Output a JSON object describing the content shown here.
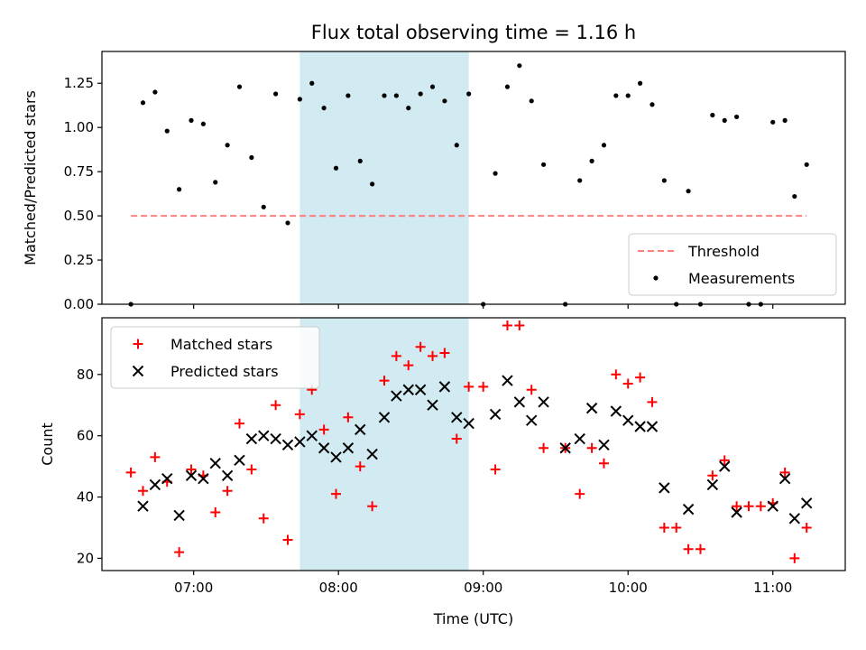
{
  "chart_data": [
    {
      "type": "scatter",
      "title": "Flux total observing time = 1.16 h",
      "ylabel": "Matched/Predicted stars",
      "xlabel": "",
      "x_unit": "minutes since 00:00 UTC",
      "xlim": [
        "06:22",
        "11:30"
      ],
      "ylim": [
        0,
        1.43
      ],
      "yticks": [
        "0.00",
        "0.25",
        "0.50",
        "0.75",
        "1.00",
        "1.25"
      ],
      "highlight_span": [
        "07:44",
        "08:54"
      ],
      "highlight_color": "#add8e6",
      "legend_position": "lower-right",
      "threshold": {
        "name": "Threshold",
        "value": 0.5,
        "x_range": [
          "06:34",
          "11:14"
        ],
        "color": "#ff7f7f",
        "style": "dashed"
      },
      "series": [
        {
          "name": "Measurements",
          "color": "#000000",
          "marker": "dot",
          "points": [
            [
              "06:34",
              0.0
            ],
            [
              "06:39",
              1.14
            ],
            [
              "06:44",
              1.2
            ],
            [
              "06:49",
              0.98
            ],
            [
              "06:54",
              0.65
            ],
            [
              "06:59",
              1.04
            ],
            [
              "07:04",
              1.02
            ],
            [
              "07:09",
              0.69
            ],
            [
              "07:14",
              0.9
            ],
            [
              "07:19",
              1.23
            ],
            [
              "07:24",
              0.83
            ],
            [
              "07:29",
              0.55
            ],
            [
              "07:34",
              1.19
            ],
            [
              "07:39",
              0.46
            ],
            [
              "07:44",
              1.16
            ],
            [
              "07:49",
              1.25
            ],
            [
              "07:54",
              1.11
            ],
            [
              "07:59",
              0.77
            ],
            [
              "08:04",
              1.18
            ],
            [
              "08:09",
              0.81
            ],
            [
              "08:14",
              0.68
            ],
            [
              "08:19",
              1.18
            ],
            [
              "08:24",
              1.18
            ],
            [
              "08:29",
              1.11
            ],
            [
              "08:34",
              1.19
            ],
            [
              "08:39",
              1.23
            ],
            [
              "08:44",
              1.15
            ],
            [
              "08:49",
              0.9
            ],
            [
              "08:54",
              1.19
            ],
            [
              "09:00",
              0.0
            ],
            [
              "09:05",
              0.74
            ],
            [
              "09:10",
              1.23
            ],
            [
              "09:15",
              1.35
            ],
            [
              "09:20",
              1.15
            ],
            [
              "09:25",
              0.79
            ],
            [
              "09:34",
              0.0
            ],
            [
              "09:40",
              0.7
            ],
            [
              "09:45",
              0.81
            ],
            [
              "09:50",
              0.9
            ],
            [
              "09:55",
              1.18
            ],
            [
              "10:00",
              1.18
            ],
            [
              "10:05",
              1.25
            ],
            [
              "10:10",
              1.13
            ],
            [
              "10:15",
              0.7
            ],
            [
              "10:20",
              0.0
            ],
            [
              "10:25",
              0.64
            ],
            [
              "10:30",
              0.0
            ],
            [
              "10:35",
              1.07
            ],
            [
              "10:40",
              1.04
            ],
            [
              "10:45",
              1.06
            ],
            [
              "10:50",
              0.0
            ],
            [
              "10:55",
              0.0
            ],
            [
              "11:00",
              1.03
            ],
            [
              "11:05",
              1.04
            ],
            [
              "11:09",
              0.61
            ],
            [
              "11:14",
              0.79
            ]
          ]
        }
      ]
    },
    {
      "type": "scatter",
      "title": "",
      "ylabel": "Count",
      "xlabel": "Time (UTC)",
      "xlim": [
        "06:22",
        "11:30"
      ],
      "ylim": [
        16,
        98.5
      ],
      "yticks": [
        "20",
        "40",
        "60",
        "80"
      ],
      "xticks": [
        "07:00",
        "08:00",
        "09:00",
        "10:00",
        "11:00"
      ],
      "highlight_span": [
        "07:44",
        "08:54"
      ],
      "highlight_color": "#add8e6",
      "legend_position": "upper-left",
      "series": [
        {
          "name": "Matched stars",
          "color": "#ff0000",
          "marker": "plus",
          "points": [
            [
              "06:34",
              48
            ],
            [
              "06:39",
              42
            ],
            [
              "06:44",
              53
            ],
            [
              "06:49",
              45
            ],
            [
              "06:54",
              22
            ],
            [
              "06:59",
              49
            ],
            [
              "07:04",
              47
            ],
            [
              "07:09",
              35
            ],
            [
              "07:14",
              42
            ],
            [
              "07:19",
              64
            ],
            [
              "07:24",
              49
            ],
            [
              "07:29",
              33
            ],
            [
              "07:34",
              70
            ],
            [
              "07:39",
              26
            ],
            [
              "07:44",
              67
            ],
            [
              "07:49",
              75
            ],
            [
              "07:54",
              62
            ],
            [
              "07:59",
              41
            ],
            [
              "08:04",
              66
            ],
            [
              "08:09",
              50
            ],
            [
              "08:14",
              37
            ],
            [
              "08:19",
              78
            ],
            [
              "08:24",
              86
            ],
            [
              "08:29",
              83
            ],
            [
              "08:34",
              89
            ],
            [
              "08:39",
              86
            ],
            [
              "08:44",
              87
            ],
            [
              "08:49",
              59
            ],
            [
              "08:54",
              76
            ],
            [
              "09:00",
              76
            ],
            [
              "09:05",
              49
            ],
            [
              "09:10",
              96
            ],
            [
              "09:15",
              96
            ],
            [
              "09:20",
              75
            ],
            [
              "09:25",
              56
            ],
            [
              "09:34",
              56
            ],
            [
              "09:40",
              41
            ],
            [
              "09:45",
              56
            ],
            [
              "09:50",
              51
            ],
            [
              "09:55",
              80
            ],
            [
              "10:00",
              77
            ],
            [
              "10:05",
              79
            ],
            [
              "10:10",
              71
            ],
            [
              "10:15",
              30
            ],
            [
              "10:20",
              30
            ],
            [
              "10:25",
              23
            ],
            [
              "10:30",
              23
            ],
            [
              "10:35",
              47
            ],
            [
              "10:40",
              52
            ],
            [
              "10:45",
              37
            ],
            [
              "10:50",
              37
            ],
            [
              "10:55",
              37
            ],
            [
              "11:00",
              38
            ],
            [
              "11:05",
              48
            ],
            [
              "11:09",
              20
            ],
            [
              "11:14",
              30
            ]
          ]
        },
        {
          "name": "Predicted stars",
          "color": "#000000",
          "marker": "x",
          "points": [
            [
              "06:39",
              37
            ],
            [
              "06:44",
              44
            ],
            [
              "06:49",
              46
            ],
            [
              "06:54",
              34
            ],
            [
              "06:59",
              47
            ],
            [
              "07:04",
              46
            ],
            [
              "07:09",
              51
            ],
            [
              "07:14",
              47
            ],
            [
              "07:19",
              52
            ],
            [
              "07:24",
              59
            ],
            [
              "07:29",
              60
            ],
            [
              "07:34",
              59
            ],
            [
              "07:39",
              57
            ],
            [
              "07:44",
              58
            ],
            [
              "07:49",
              60
            ],
            [
              "07:54",
              56
            ],
            [
              "07:59",
              53
            ],
            [
              "08:04",
              56
            ],
            [
              "08:09",
              62
            ],
            [
              "08:14",
              54
            ],
            [
              "08:19",
              66
            ],
            [
              "08:24",
              73
            ],
            [
              "08:29",
              75
            ],
            [
              "08:34",
              75
            ],
            [
              "08:39",
              70
            ],
            [
              "08:44",
              76
            ],
            [
              "08:49",
              66
            ],
            [
              "08:54",
              64
            ],
            [
              "09:05",
              67
            ],
            [
              "09:10",
              78
            ],
            [
              "09:15",
              71
            ],
            [
              "09:20",
              65
            ],
            [
              "09:25",
              71
            ],
            [
              "09:34",
              56
            ],
            [
              "09:40",
              59
            ],
            [
              "09:45",
              69
            ],
            [
              "09:50",
              57
            ],
            [
              "09:55",
              68
            ],
            [
              "10:00",
              65
            ],
            [
              "10:05",
              63
            ],
            [
              "10:10",
              63
            ],
            [
              "10:15",
              43
            ],
            [
              "10:25",
              36
            ],
            [
              "10:35",
              44
            ],
            [
              "10:40",
              50
            ],
            [
              "10:45",
              35
            ],
            [
              "11:00",
              37
            ],
            [
              "11:05",
              46
            ],
            [
              "11:09",
              33
            ],
            [
              "11:14",
              38
            ]
          ]
        }
      ]
    }
  ]
}
